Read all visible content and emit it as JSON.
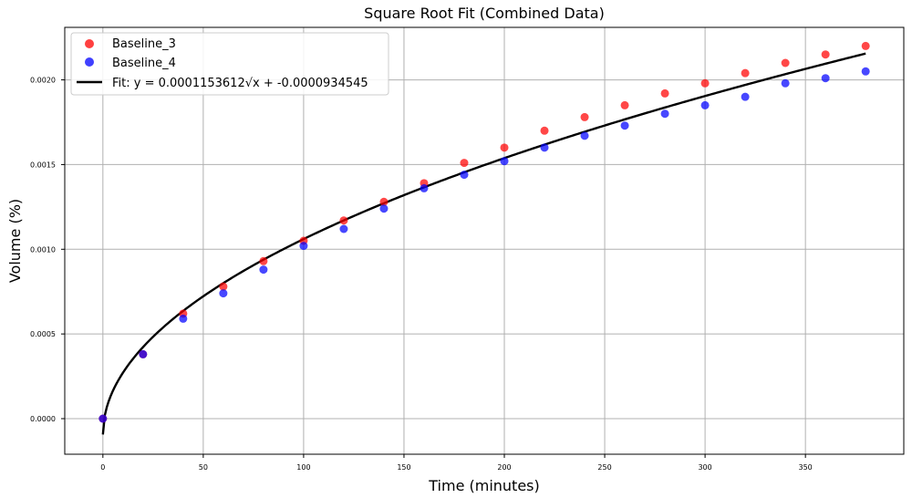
{
  "chart_data": {
    "type": "scatter",
    "title": "Square Root Fit (Combined Data)",
    "xlabel": "Time (minutes)",
    "ylabel": "Volume (%)",
    "xlim": [
      -19,
      399
    ],
    "ylim": [
      -0.00021,
      0.00231
    ],
    "xticks": [
      0,
      50,
      100,
      150,
      200,
      250,
      300,
      350
    ],
    "xtick_labels": [
      "0",
      "50",
      "100",
      "150",
      "200",
      "250",
      "300",
      "350"
    ],
    "yticks": [
      0.0,
      0.0005,
      0.001,
      0.0015,
      0.002
    ],
    "ytick_labels": [
      "0.0000",
      "0.0005",
      "0.0010",
      "0.0015",
      "0.0020"
    ],
    "grid": true,
    "legend_position": "top-left",
    "series": [
      {
        "name": "Baseline_3",
        "kind": "scatter",
        "color": "#ff0000",
        "x": [
          0,
          20,
          40,
          60,
          80,
          100,
          120,
          140,
          160,
          180,
          200,
          220,
          240,
          260,
          280,
          300,
          320,
          340,
          360,
          380
        ],
        "y": [
          0.0,
          0.00038,
          0.00062,
          0.00078,
          0.00093,
          0.00105,
          0.00117,
          0.00128,
          0.00139,
          0.00151,
          0.0016,
          0.0017,
          0.00178,
          0.00185,
          0.00192,
          0.00198,
          0.00204,
          0.0021,
          0.00215,
          0.0022
        ]
      },
      {
        "name": "Baseline_4",
        "kind": "scatter",
        "color": "#0000ff",
        "x": [
          0,
          20,
          40,
          60,
          80,
          100,
          120,
          140,
          160,
          180,
          200,
          220,
          240,
          260,
          280,
          300,
          320,
          340,
          360,
          380
        ],
        "y": [
          0.0,
          0.00038,
          0.00059,
          0.00074,
          0.00088,
          0.00102,
          0.00112,
          0.00124,
          0.00136,
          0.00144,
          0.00152,
          0.0016,
          0.00167,
          0.00173,
          0.0018,
          0.00185,
          0.0019,
          0.00198,
          0.00201,
          0.00205
        ]
      }
    ],
    "fit": {
      "name": "Fit: y = 0.0001153612√x + -0.0000934545",
      "color": "#000000",
      "a": 0.0001153612,
      "b": -9.34545e-05,
      "x_range": [
        0,
        380
      ]
    }
  }
}
